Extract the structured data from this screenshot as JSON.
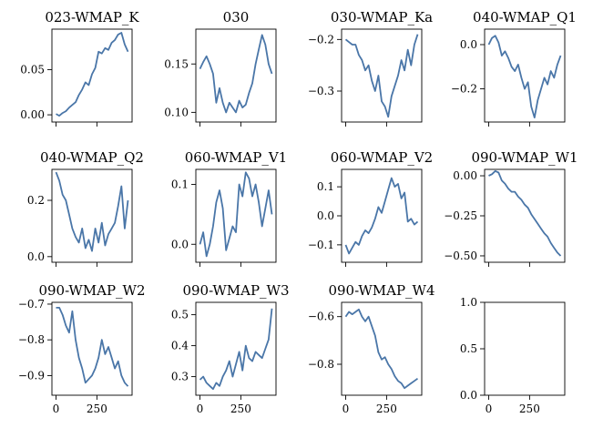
{
  "chart_data": [
    {
      "type": "line",
      "title": "023-WMAP_K",
      "xlim": [
        -25,
        465
      ],
      "ylim": [
        -0.008,
        0.095
      ],
      "x_ticks": [
        0,
        250
      ],
      "x_tick_labels": [
        "",
        ""
      ],
      "y_ticks": [
        0,
        0.05
      ],
      "y_tick_labels": [
        "0.00",
        "0.05"
      ],
      "series": [
        {
          "color": "#4a76a8",
          "x": [
            0,
            20,
            40,
            60,
            80,
            100,
            120,
            140,
            160,
            180,
            200,
            220,
            240,
            260,
            280,
            300,
            320,
            340,
            360,
            380,
            400,
            420,
            440
          ],
          "y": [
            0.001,
            -0.001,
            0.002,
            0.004,
            0.008,
            0.011,
            0.014,
            0.022,
            0.028,
            0.036,
            0.033,
            0.045,
            0.052,
            0.07,
            0.068,
            0.074,
            0.072,
            0.08,
            0.083,
            0.089,
            0.091,
            0.078,
            0.07
          ]
        }
      ]
    },
    {
      "type": "line",
      "title": "030",
      "xlim": [
        -25,
        465
      ],
      "ylim": [
        0.09,
        0.186
      ],
      "x_ticks": [
        0,
        250
      ],
      "x_tick_labels": [
        "",
        ""
      ],
      "y_ticks": [
        0.1,
        0.15
      ],
      "y_tick_labels": [
        "0.10",
        "0.15"
      ],
      "series": [
        {
          "color": "#4a76a8",
          "x": [
            0,
            20,
            40,
            60,
            80,
            100,
            120,
            140,
            160,
            180,
            200,
            220,
            240,
            260,
            280,
            300,
            320,
            340,
            360,
            380,
            400,
            420,
            440
          ],
          "y": [
            0.145,
            0.152,
            0.158,
            0.15,
            0.14,
            0.11,
            0.125,
            0.11,
            0.1,
            0.11,
            0.105,
            0.1,
            0.112,
            0.105,
            0.108,
            0.12,
            0.13,
            0.15,
            0.165,
            0.18,
            0.17,
            0.15,
            0.14
          ]
        }
      ]
    },
    {
      "type": "line",
      "title": "030-WMAP_Ka",
      "xlim": [
        -25,
        465
      ],
      "ylim": [
        -0.36,
        -0.18
      ],
      "x_ticks": [
        0,
        250
      ],
      "x_tick_labels": [
        "",
        ""
      ],
      "y_ticks": [
        -0.3,
        -0.2
      ],
      "y_tick_labels": [
        "−0.3",
        "−0.2"
      ],
      "series": [
        {
          "color": "#4a76a8",
          "x": [
            0,
            20,
            40,
            60,
            80,
            100,
            120,
            140,
            160,
            180,
            200,
            220,
            240,
            260,
            280,
            300,
            320,
            340,
            360,
            380,
            400,
            420,
            440
          ],
          "y": [
            -0.2,
            -0.205,
            -0.21,
            -0.21,
            -0.23,
            -0.24,
            -0.26,
            -0.25,
            -0.28,
            -0.3,
            -0.27,
            -0.32,
            -0.33,
            -0.35,
            -0.31,
            -0.29,
            -0.27,
            -0.24,
            -0.26,
            -0.22,
            -0.25,
            -0.21,
            -0.19
          ]
        }
      ]
    },
    {
      "type": "line",
      "title": "040-WMAP_Q1",
      "xlim": [
        -25,
        465
      ],
      "ylim": [
        -0.35,
        0.07
      ],
      "x_ticks": [
        0,
        250
      ],
      "x_tick_labels": [
        "",
        ""
      ],
      "y_ticks": [
        -0.2,
        0
      ],
      "y_tick_labels": [
        "−0.2",
        "0.0"
      ],
      "series": [
        {
          "color": "#4a76a8",
          "x": [
            0,
            20,
            40,
            60,
            80,
            100,
            120,
            140,
            160,
            180,
            200,
            220,
            240,
            260,
            280,
            300,
            320,
            340,
            360,
            380,
            400,
            420,
            440
          ],
          "y": [
            0.0,
            0.03,
            0.04,
            0.01,
            -0.05,
            -0.03,
            -0.06,
            -0.1,
            -0.12,
            -0.09,
            -0.15,
            -0.2,
            -0.17,
            -0.28,
            -0.33,
            -0.25,
            -0.2,
            -0.15,
            -0.18,
            -0.12,
            -0.15,
            -0.09,
            -0.05
          ]
        }
      ]
    },
    {
      "type": "line",
      "title": "040-WMAP_Q2",
      "xlim": [
        -25,
        465
      ],
      "ylim": [
        -0.02,
        0.31
      ],
      "x_ticks": [
        0,
        250
      ],
      "x_tick_labels": [
        "",
        ""
      ],
      "y_ticks": [
        0,
        0.2
      ],
      "y_tick_labels": [
        "0.0",
        "0.2"
      ],
      "series": [
        {
          "color": "#4a76a8",
          "x": [
            0,
            20,
            40,
            60,
            80,
            100,
            120,
            140,
            160,
            180,
            200,
            220,
            240,
            260,
            280,
            300,
            320,
            340,
            360,
            380,
            400,
            420,
            440
          ],
          "y": [
            0.3,
            0.27,
            0.22,
            0.2,
            0.15,
            0.1,
            0.07,
            0.05,
            0.1,
            0.03,
            0.06,
            0.02,
            0.1,
            0.05,
            0.12,
            0.04,
            0.08,
            0.1,
            0.12,
            0.18,
            0.25,
            0.1,
            0.2
          ]
        }
      ]
    },
    {
      "type": "line",
      "title": "060-WMAP_V1",
      "xlim": [
        -25,
        465
      ],
      "ylim": [
        -0.03,
        0.125
      ],
      "x_ticks": [
        0,
        250
      ],
      "x_tick_labels": [
        "",
        ""
      ],
      "y_ticks": [
        0,
        0.1
      ],
      "y_tick_labels": [
        "0.0",
        "0.1"
      ],
      "series": [
        {
          "color": "#4a76a8",
          "x": [
            0,
            20,
            40,
            60,
            80,
            100,
            120,
            140,
            160,
            180,
            200,
            220,
            240,
            260,
            280,
            300,
            320,
            340,
            360,
            380,
            400,
            420,
            440
          ],
          "y": [
            0.0,
            0.02,
            -0.02,
            0.0,
            0.03,
            0.07,
            0.09,
            0.06,
            -0.01,
            0.01,
            0.03,
            0.02,
            0.1,
            0.08,
            0.12,
            0.11,
            0.08,
            0.1,
            0.07,
            0.03,
            0.06,
            0.09,
            0.05
          ]
        }
      ]
    },
    {
      "type": "line",
      "title": "060-WMAP_V2",
      "xlim": [
        -25,
        465
      ],
      "ylim": [
        -0.16,
        0.16
      ],
      "x_ticks": [
        0,
        250
      ],
      "x_tick_labels": [
        "",
        ""
      ],
      "y_ticks": [
        -0.1,
        0,
        0.1
      ],
      "y_tick_labels": [
        "−0.1",
        "0.0",
        "0.1"
      ],
      "series": [
        {
          "color": "#4a76a8",
          "x": [
            0,
            20,
            40,
            60,
            80,
            100,
            120,
            140,
            160,
            180,
            200,
            220,
            240,
            260,
            280,
            300,
            320,
            340,
            360,
            380,
            400,
            420,
            440
          ],
          "y": [
            -0.1,
            -0.13,
            -0.11,
            -0.09,
            -0.1,
            -0.07,
            -0.05,
            -0.06,
            -0.04,
            -0.01,
            0.03,
            0.01,
            0.05,
            0.09,
            0.13,
            0.1,
            0.11,
            0.06,
            0.08,
            -0.02,
            -0.01,
            -0.03,
            -0.02
          ]
        }
      ]
    },
    {
      "type": "line",
      "title": "090-WMAP_W1",
      "xlim": [
        -25,
        465
      ],
      "ylim": [
        -0.54,
        0.04
      ],
      "x_ticks": [
        0,
        250
      ],
      "x_tick_labels": [
        "",
        ""
      ],
      "y_ticks": [
        -0.5,
        -0.25,
        0
      ],
      "y_tick_labels": [
        "−0.50",
        "−0.25",
        "0.00"
      ],
      "series": [
        {
          "color": "#4a76a8",
          "x": [
            0,
            20,
            40,
            60,
            80,
            100,
            120,
            140,
            160,
            180,
            200,
            220,
            240,
            260,
            280,
            300,
            320,
            340,
            360,
            380,
            400,
            420,
            440
          ],
          "y": [
            0.0,
            0.01,
            0.03,
            0.02,
            -0.03,
            -0.05,
            -0.08,
            -0.1,
            -0.1,
            -0.13,
            -0.15,
            -0.18,
            -0.2,
            -0.24,
            -0.27,
            -0.3,
            -0.33,
            -0.36,
            -0.38,
            -0.42,
            -0.45,
            -0.48,
            -0.5
          ]
        }
      ]
    },
    {
      "type": "line",
      "title": "090-WMAP_W2",
      "xlim": [
        -25,
        465
      ],
      "ylim": [
        -0.955,
        -0.695
      ],
      "x_ticks": [
        0,
        250
      ],
      "x_tick_labels": [
        "0",
        "250"
      ],
      "y_ticks": [
        -0.9,
        -0.8,
        -0.7
      ],
      "y_tick_labels": [
        "−0.9",
        "−0.8",
        "−0.7"
      ],
      "series": [
        {
          "color": "#4a76a8",
          "x": [
            0,
            20,
            40,
            60,
            80,
            100,
            120,
            140,
            160,
            180,
            200,
            220,
            240,
            260,
            280,
            300,
            320,
            340,
            360,
            380,
            400,
            420,
            440
          ],
          "y": [
            -0.71,
            -0.71,
            -0.73,
            -0.76,
            -0.78,
            -0.72,
            -0.8,
            -0.85,
            -0.88,
            -0.92,
            -0.91,
            -0.9,
            -0.88,
            -0.85,
            -0.8,
            -0.84,
            -0.82,
            -0.85,
            -0.88,
            -0.86,
            -0.9,
            -0.92,
            -0.93
          ]
        }
      ]
    },
    {
      "type": "line",
      "title": "090-WMAP_W3",
      "xlim": [
        -25,
        465
      ],
      "ylim": [
        0.24,
        0.54
      ],
      "x_ticks": [
        0,
        250
      ],
      "x_tick_labels": [
        "0",
        "250"
      ],
      "y_ticks": [
        0.3,
        0.4,
        0.5
      ],
      "y_tick_labels": [
        "0.3",
        "0.4",
        "0.5"
      ],
      "series": [
        {
          "color": "#4a76a8",
          "x": [
            0,
            20,
            40,
            60,
            80,
            100,
            120,
            140,
            160,
            180,
            200,
            220,
            240,
            260,
            280,
            300,
            320,
            340,
            360,
            380,
            400,
            420,
            440
          ],
          "y": [
            0.29,
            0.3,
            0.28,
            0.27,
            0.26,
            0.28,
            0.27,
            0.3,
            0.32,
            0.35,
            0.3,
            0.34,
            0.38,
            0.32,
            0.4,
            0.36,
            0.35,
            0.38,
            0.37,
            0.36,
            0.39,
            0.42,
            0.52
          ]
        }
      ]
    },
    {
      "type": "line",
      "title": "090-WMAP_W4",
      "xlim": [
        -25,
        465
      ],
      "ylim": [
        -0.93,
        -0.54
      ],
      "x_ticks": [
        0,
        250
      ],
      "x_tick_labels": [
        "0",
        "250"
      ],
      "y_ticks": [
        -0.8,
        -0.6
      ],
      "y_tick_labels": [
        "−0.8",
        "−0.6"
      ],
      "series": [
        {
          "color": "#4a76a8",
          "x": [
            0,
            20,
            40,
            60,
            80,
            100,
            120,
            140,
            160,
            180,
            200,
            220,
            240,
            260,
            280,
            300,
            320,
            340,
            360,
            380,
            400,
            420,
            440
          ],
          "y": [
            -0.6,
            -0.58,
            -0.59,
            -0.58,
            -0.57,
            -0.6,
            -0.62,
            -0.6,
            -0.64,
            -0.68,
            -0.75,
            -0.78,
            -0.77,
            -0.8,
            -0.82,
            -0.85,
            -0.87,
            -0.88,
            -0.9,
            -0.89,
            -0.88,
            -0.87,
            -0.86
          ]
        }
      ]
    },
    {
      "type": "line",
      "title": "",
      "xlim": [
        -25,
        465
      ],
      "ylim": [
        0,
        1
      ],
      "x_ticks": [
        0,
        250
      ],
      "x_tick_labels": [
        "0",
        "250"
      ],
      "y_ticks": [
        0,
        0.5,
        1
      ],
      "y_tick_labels": [
        "0.0",
        "0.5",
        "1.0"
      ],
      "series": []
    }
  ]
}
